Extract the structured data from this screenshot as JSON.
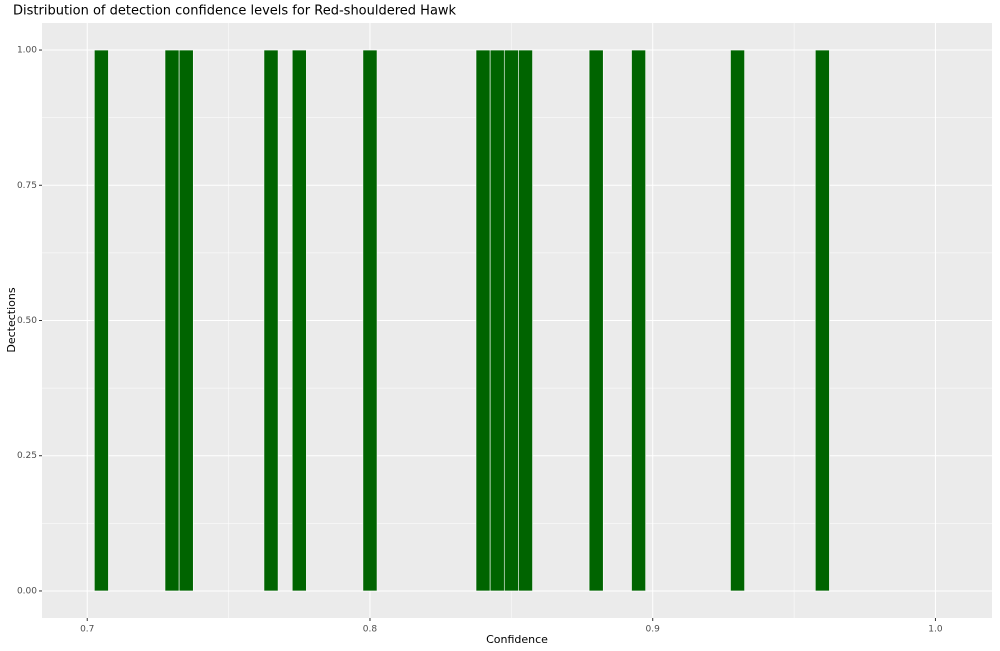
{
  "chart_data": {
    "type": "histogram",
    "title": "Distribution of detection confidence levels for Red-shouldered Hawk",
    "x_label": "Confidence",
    "y_label": "Dectections",
    "bins": [
      0.7025,
      0.7075,
      0.7125,
      0.7175,
      0.7225,
      0.7275,
      0.7325,
      0.7375,
      0.7425,
      0.7475,
      0.7525,
      0.7575,
      0.7625,
      0.7675,
      0.7725,
      0.7775,
      0.7825,
      0.7875,
      0.7925,
      0.7975,
      0.8025,
      0.8075,
      0.8125,
      0.8175,
      0.8225,
      0.8275,
      0.8325,
      0.8375,
      0.8425,
      0.8475,
      0.8525,
      0.8575,
      0.8625,
      0.8675,
      0.8725,
      0.8775,
      0.8825,
      0.8875,
      0.8925,
      0.8975,
      0.9025,
      0.9075,
      0.9125,
      0.9175,
      0.9225,
      0.9275,
      0.9325,
      0.9375,
      0.9425,
      0.9475,
      0.9525,
      0.9575,
      0.9625
    ],
    "values": [
      1,
      0,
      0,
      0,
      0,
      1,
      1,
      0,
      0,
      0,
      0,
      0,
      1,
      0,
      1,
      0,
      0,
      0,
      0,
      1,
      0,
      0,
      0,
      0,
      0,
      0,
      0,
      1,
      1,
      1,
      1,
      0,
      0,
      0,
      0,
      1,
      0,
      0,
      1,
      0,
      0,
      0,
      0,
      0,
      0,
      1,
      0,
      0,
      0,
      0,
      0,
      1
    ],
    "color": "#006400",
    "xlim": [
      0.684,
      1.02
    ],
    "ylim": [
      -0.05,
      1.05
    ],
    "xticks": [
      0.7,
      0.8,
      0.9,
      {
        "value": 1,
        "label": "1.0"
      }
    ],
    "yticks": [
      {
        "value": 0,
        "label": "0.00"
      },
      {
        "value": 0.25,
        "label": "0.25"
      },
      {
        "value": 0.5,
        "label": "0.50"
      },
      {
        "value": 0.75,
        "label": "0.75"
      },
      {
        "value": 1,
        "label": "1.00"
      }
    ],
    "xminor": [
      0.75,
      0.85,
      0.95
    ],
    "yminor": [
      0.125,
      0.375,
      0.625,
      0.875
    ],
    "grid": true
  }
}
